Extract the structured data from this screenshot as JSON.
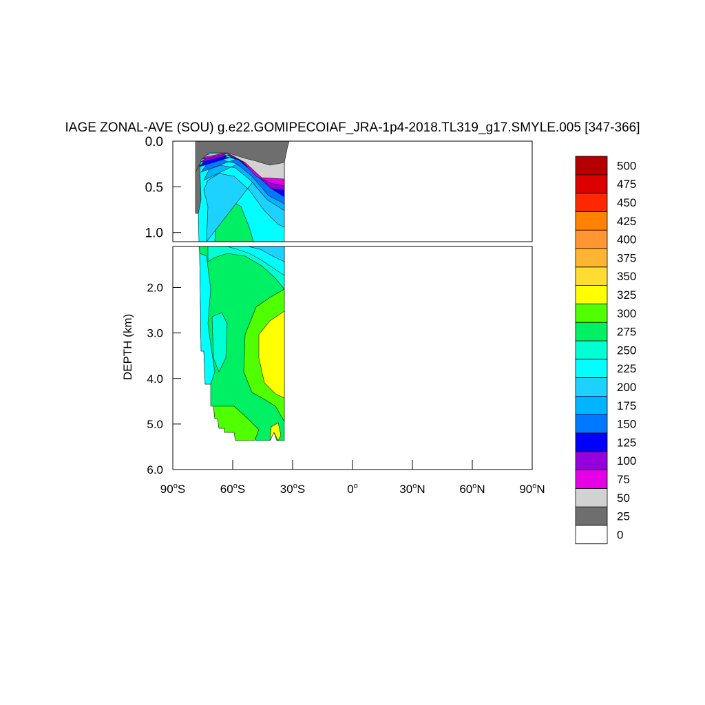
{
  "chart_data": {
    "type": "heatmap",
    "title": "IAGE ZONAL-AVE (SOU) g.e22.GOMIPECOIAF_JRA-1p4-2018.TL319_g17.SMYLE.005 [347-366]",
    "ylabel": "DEPTH (km)",
    "xlabel": "",
    "xlim": [
      -90,
      90
    ],
    "x_ticks": [
      -90,
      -60,
      -30,
      0,
      30,
      60,
      90
    ],
    "x_tick_labels": [
      {
        "num": "90",
        "hemi": "S"
      },
      {
        "num": "60",
        "hemi": "S"
      },
      {
        "num": "30",
        "hemi": "S"
      },
      {
        "num": "0",
        "hemi": ""
      },
      {
        "num": "30",
        "hemi": "N"
      },
      {
        "num": "60",
        "hemi": "N"
      },
      {
        "num": "90",
        "hemi": "N"
      }
    ],
    "upper_panel": {
      "ylim": [
        0.0,
        1.1
      ],
      "ticks": [
        0.0,
        0.5,
        1.0
      ],
      "tick_labels": [
        "0.0",
        "0.5",
        "1.0"
      ]
    },
    "lower_panel": {
      "ylim": [
        1.1,
        6.0
      ],
      "ticks": [
        2.0,
        3.0,
        4.0,
        5.0,
        6.0
      ],
      "tick_labels": [
        "2.0",
        "3.0",
        "4.0",
        "5.0",
        "6.0"
      ]
    },
    "data_extent": {
      "lat_min": -78,
      "lat_max": -34,
      "max_depth_km": 5.4
    },
    "colorbar": {
      "levels": [
        0,
        25,
        50,
        75,
        100,
        125,
        150,
        175,
        200,
        225,
        250,
        275,
        300,
        325,
        350,
        375,
        400,
        425,
        450,
        475,
        500
      ],
      "level_labels": [
        "0",
        "25",
        "50",
        "75",
        "100",
        "125",
        "150",
        "175",
        "200",
        "225",
        "250",
        "275",
        "300",
        "325",
        "350",
        "375",
        "400",
        "425",
        "450",
        "475",
        "500"
      ],
      "colors": [
        "#ffffff",
        "#6e6e6e",
        "#d2d2d2",
        "#e600e6",
        "#9600dc",
        "#0000ff",
        "#0078ff",
        "#00b4ff",
        "#1ed2ff",
        "#00ffff",
        "#00ffd2",
        "#00f064",
        "#50ff00",
        "#ffff00",
        "#ffdc32",
        "#ffb432",
        "#ff9632",
        "#ff8200",
        "#ff2800",
        "#dc0000",
        "#b40000"
      ]
    },
    "regions": [
      {
        "lat": [
          -78,
          -34
        ],
        "depth": [
          1.1,
          5.4
        ],
        "value_band": [
          250,
          275
        ]
      },
      {
        "lat": [
          -46,
          -34
        ],
        "depth": [
          2.5,
          4.3
        ],
        "value_band": [
          300,
          325
        ]
      },
      {
        "lat": [
          -77,
          -68
        ],
        "depth": [
          1.2,
          4.1
        ],
        "value_band": [
          200,
          225
        ]
      },
      {
        "lat": [
          -78,
          -34
        ],
        "depth": [
          0.0,
          0.15
        ],
        "value_band": [
          0,
          25
        ]
      },
      {
        "lat": [
          -46,
          -34
        ],
        "depth": [
          0.15,
          0.55
        ],
        "value_band": [
          25,
          50
        ]
      },
      {
        "lat": [
          -50,
          -34
        ],
        "depth": [
          0.45,
          0.75
        ],
        "value_band": [
          75,
          100
        ]
      },
      {
        "lat": [
          -48,
          -34
        ],
        "depth": [
          0.6,
          0.95
        ],
        "value_band": [
          100,
          125
        ]
      }
    ]
  }
}
